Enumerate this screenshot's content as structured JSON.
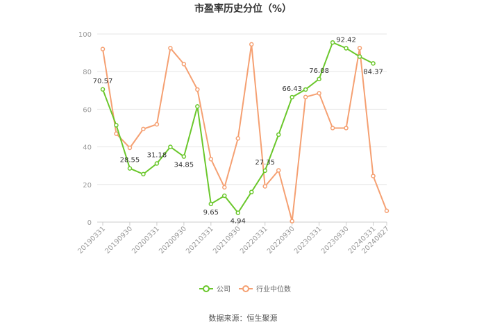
{
  "chart_data": {
    "type": "line",
    "title": "市盈率历史分位（%）",
    "source": "数据来源：恒生聚源",
    "ylim": [
      0,
      100
    ],
    "yticks": [
      "0",
      "20",
      "40",
      "60",
      "80",
      "100"
    ],
    "ytick_values": [
      0,
      20,
      40,
      60,
      80,
      100
    ],
    "categories": [
      "20190331",
      "20190630",
      "20190930",
      "20191231",
      "20200331",
      "20200630",
      "20200930",
      "20201231",
      "20210331",
      "20210630",
      "20210930",
      "20211231",
      "20220331",
      "20220630",
      "20220930",
      "20221231",
      "20230331",
      "20230630",
      "20230930",
      "20231231",
      "20240331",
      "20240827"
    ],
    "xtick_labels": [
      "20190331",
      "20190930",
      "20200331",
      "20200930",
      "20210331",
      "20210930",
      "20220331",
      "20220930",
      "20230331",
      "20230930",
      "20240331",
      "20240827"
    ],
    "xtick_indices": [
      0,
      2,
      4,
      6,
      8,
      10,
      12,
      14,
      16,
      18,
      20,
      21
    ],
    "grid": true,
    "legend_position": "bottom",
    "series": [
      {
        "name": "公司",
        "color": "#6ac72b",
        "values": [
          70.57,
          51.5,
          28.55,
          25.5,
          31.18,
          40.0,
          34.85,
          61.5,
          9.65,
          14.0,
          4.94,
          16.0,
          27.35,
          46.5,
          66.43,
          70.5,
          76.08,
          95.5,
          92.42,
          88.0,
          84.37,
          null
        ],
        "labels": [
          {
            "index": 0,
            "text": "70.57"
          },
          {
            "index": 2,
            "text": "28.55"
          },
          {
            "index": 4,
            "text": "31.18"
          },
          {
            "index": 6,
            "text": "34.85"
          },
          {
            "index": 8,
            "text": "9.65"
          },
          {
            "index": 10,
            "text": "4.94"
          },
          {
            "index": 12,
            "text": "27.35"
          },
          {
            "index": 14,
            "text": "66.43"
          },
          {
            "index": 16,
            "text": "76.08"
          },
          {
            "index": 18,
            "text": "92.42"
          },
          {
            "index": 20,
            "text": "84.37"
          }
        ]
      },
      {
        "name": "行业中位数",
        "color": "#f5a072",
        "values": [
          92.0,
          47.0,
          39.5,
          49.5,
          52.0,
          92.5,
          84.0,
          70.5,
          33.5,
          18.5,
          44.5,
          94.5,
          19.0,
          27.5,
          0.5,
          66.5,
          68.5,
          50.0,
          50.0,
          92.5,
          24.5,
          6.0
        ],
        "labels": []
      }
    ]
  }
}
